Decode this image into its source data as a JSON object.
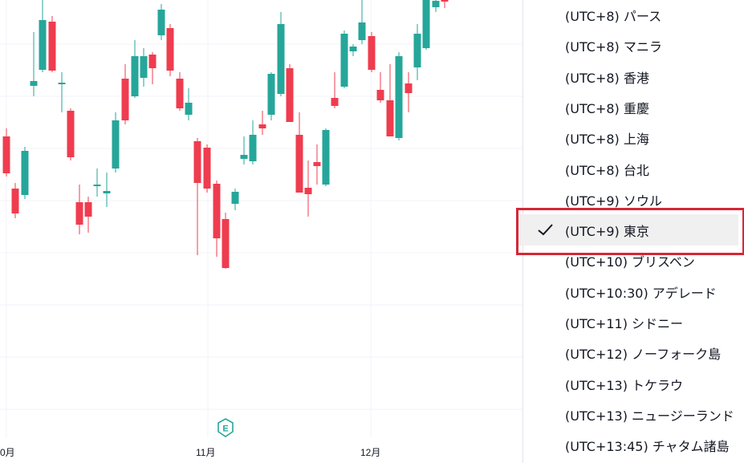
{
  "chart": {
    "x_labels": [
      "0月",
      "11月",
      "12月"
    ],
    "up_color": "#26a69a",
    "down_color": "#ef3c4f",
    "earnings_marker": "E"
  },
  "timezone_menu": {
    "items": [
      {
        "label": "(UTC+8) パース",
        "selected": false
      },
      {
        "label": "(UTC+8) マニラ",
        "selected": false
      },
      {
        "label": "(UTC+8) 香港",
        "selected": false
      },
      {
        "label": "(UTC+8) 重慶",
        "selected": false
      },
      {
        "label": "(UTC+8) 上海",
        "selected": false
      },
      {
        "label": "(UTC+8) 台北",
        "selected": false
      },
      {
        "label": "(UTC+9) ソウル",
        "selected": false
      },
      {
        "label": "(UTC+9) 東京",
        "selected": true
      },
      {
        "label": "(UTC+10) ブリスベン",
        "selected": false
      },
      {
        "label": "(UTC+10:30) アデレード",
        "selected": false
      },
      {
        "label": "(UTC+11) シドニー",
        "selected": false
      },
      {
        "label": "(UTC+12) ノーフォーク島",
        "selected": false
      },
      {
        "label": "(UTC+13) トケラウ",
        "selected": false
      },
      {
        "label": "(UTC+13) ニュージーランド",
        "selected": false
      },
      {
        "label": "(UTC+13:45) チャタム諸島",
        "selected": false
      }
    ],
    "highlight_color": "#d72638"
  }
}
